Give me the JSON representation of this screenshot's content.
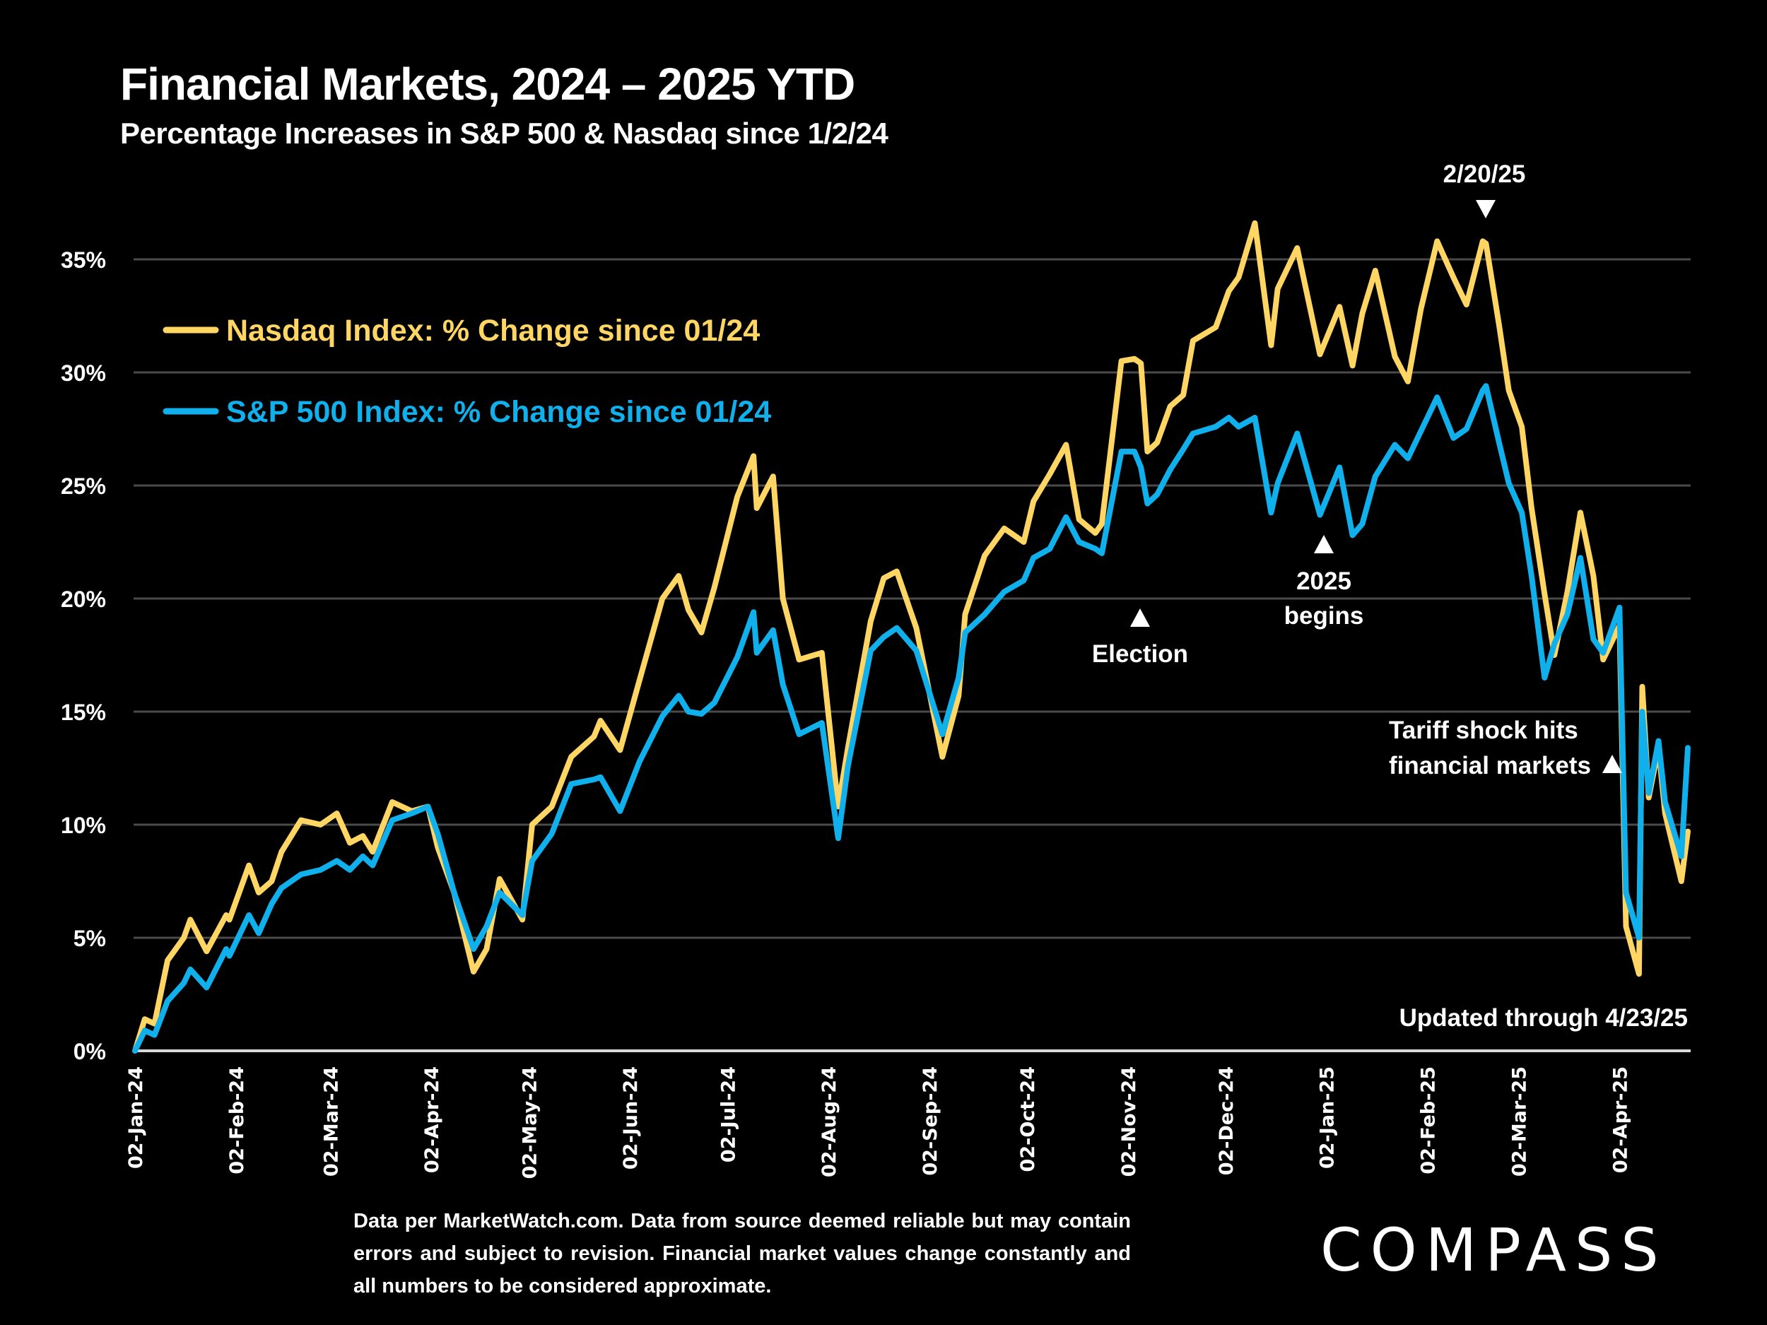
{
  "header": {
    "title": "Financial Markets, 2024 – 2025 YTD",
    "subtitle": "Percentage Increases in S&P 500 & Nasdaq since 1/2/24"
  },
  "footer": {
    "note": "Data per MarketWatch.com. Data from source deemed reliable but may contain errors and subject to revision. Financial market values change constantly and all numbers to be considered approximate.",
    "logo": "COMPASS"
  },
  "colors": {
    "nasdaq": "#FFD563",
    "sp500": "#0FB0EC",
    "grid": "#4a4a4a",
    "axis": "#d9d9d9"
  },
  "chart_data": {
    "type": "line",
    "title": "Financial Markets, 2024 – 2025 YTD",
    "subtitle": "Percentage Increases in S&P 500 & Nasdaq since 1/2/24",
    "xlabel": "",
    "ylabel": "",
    "ylim": [
      0,
      35
    ],
    "yticks": [
      0,
      5,
      10,
      15,
      20,
      25,
      30,
      35
    ],
    "ytick_labels": [
      "0%",
      "5%",
      "10%",
      "15%",
      "20%",
      "25%",
      "30%",
      "35%"
    ],
    "x_range": [
      "2024-01-02",
      "2025-04-23"
    ],
    "xtick_dates": [
      "2024-01-02",
      "2024-02-02",
      "2024-03-02",
      "2024-04-02",
      "2024-05-02",
      "2024-06-02",
      "2024-07-02",
      "2024-08-02",
      "2024-09-02",
      "2024-10-02",
      "2024-11-02",
      "2024-12-02",
      "2025-01-02",
      "2025-02-02",
      "2025-03-02",
      "2025-04-02"
    ],
    "xtick_labels": [
      "02-Jan-24",
      "02-Feb-24",
      "02-Mar-24",
      "02-Apr-24",
      "02-May-24",
      "02-Jun-24",
      "02-Jul-24",
      "02-Aug-24",
      "02-Sep-24",
      "02-Oct-24",
      "02-Nov-24",
      "02-Dec-24",
      "02-Jan-25",
      "02-Feb-25",
      "02-Mar-25",
      "02-Apr-25"
    ],
    "grid": true,
    "legend_position": "top-left",
    "x": [
      "2024-01-02",
      "2024-01-05",
      "2024-01-08",
      "2024-01-12",
      "2024-01-17",
      "2024-01-19",
      "2024-01-24",
      "2024-01-30",
      "2024-01-31",
      "2024-02-06",
      "2024-02-09",
      "2024-02-13",
      "2024-02-16",
      "2024-02-22",
      "2024-02-28",
      "2024-03-04",
      "2024-03-08",
      "2024-03-12",
      "2024-03-15",
      "2024-03-21",
      "2024-03-27",
      "2024-04-01",
      "2024-04-04",
      "2024-04-09",
      "2024-04-15",
      "2024-04-19",
      "2024-04-23",
      "2024-04-30",
      "2024-05-03",
      "2024-05-09",
      "2024-05-15",
      "2024-05-22",
      "2024-05-24",
      "2024-05-30",
      "2024-06-05",
      "2024-06-12",
      "2024-06-17",
      "2024-06-20",
      "2024-06-24",
      "2024-06-28",
      "2024-07-05",
      "2024-07-10",
      "2024-07-11",
      "2024-07-16",
      "2024-07-19",
      "2024-07-24",
      "2024-07-31",
      "2024-08-05",
      "2024-08-08",
      "2024-08-15",
      "2024-08-19",
      "2024-08-23",
      "2024-08-29",
      "2024-09-06",
      "2024-09-11",
      "2024-09-13",
      "2024-09-19",
      "2024-09-25",
      "2024-10-01",
      "2024-10-04",
      "2024-10-09",
      "2024-10-14",
      "2024-10-18",
      "2024-10-23",
      "2024-10-25",
      "2024-10-31",
      "2024-11-04",
      "2024-11-06",
      "2024-11-08",
      "2024-11-11",
      "2024-11-15",
      "2024-11-19",
      "2024-11-22",
      "2024-11-29",
      "2024-12-03",
      "2024-12-06",
      "2024-12-11",
      "2024-12-16",
      "2024-12-18",
      "2024-12-24",
      "2024-12-31",
      "2025-01-06",
      "2025-01-10",
      "2025-01-13",
      "2025-01-17",
      "2025-01-23",
      "2025-01-27",
      "2025-01-31",
      "2025-02-05",
      "2025-02-10",
      "2025-02-14",
      "2025-02-19",
      "2025-02-20",
      "2025-02-24",
      "2025-02-27",
      "2025-03-03",
      "2025-03-06",
      "2025-03-10",
      "2025-03-13",
      "2025-03-17",
      "2025-03-21",
      "2025-03-25",
      "2025-03-28",
      "2025-04-02",
      "2025-04-04",
      "2025-04-08",
      "2025-04-09",
      "2025-04-11",
      "2025-04-14",
      "2025-04-16",
      "2025-04-21",
      "2025-04-23"
    ],
    "series": [
      {
        "name": "Nasdaq Index: % Change since 01/24",
        "values": [
          0.0,
          1.4,
          1.2,
          4.0,
          5.0,
          5.8,
          4.4,
          6.0,
          5.8,
          8.2,
          7.0,
          7.5,
          8.8,
          10.2,
          10.0,
          10.5,
          9.2,
          9.5,
          8.8,
          11.0,
          10.6,
          10.8,
          9.0,
          7.0,
          3.5,
          4.5,
          7.6,
          5.8,
          10.0,
          10.8,
          13.0,
          13.9,
          14.6,
          13.3,
          16.4,
          20.0,
          21.0,
          19.5,
          18.5,
          20.5,
          24.5,
          26.3,
          24.0,
          25.4,
          20.0,
          17.3,
          17.6,
          10.8,
          13.4,
          19.0,
          20.9,
          21.2,
          18.7,
          13.0,
          15.7,
          19.3,
          21.9,
          23.1,
          22.5,
          24.3,
          25.5,
          26.8,
          23.5,
          22.9,
          23.3,
          30.5,
          30.6,
          30.4,
          26.5,
          26.9,
          28.5,
          29.0,
          31.4,
          32.0,
          33.6,
          34.2,
          36.6,
          31.2,
          33.7,
          35.5,
          30.8,
          32.9,
          30.3,
          32.6,
          34.5,
          30.7,
          29.6,
          32.8,
          35.8,
          34.2,
          33.0,
          35.8,
          35.7,
          32.1,
          29.2,
          27.6,
          24.0,
          20.2,
          17.5,
          20.3,
          23.8,
          21.0,
          17.3,
          18.8,
          5.5,
          3.4,
          16.1,
          11.2,
          13.4,
          10.5,
          7.5,
          9.7
        ]
      },
      {
        "name": "S&P 500 Index: % Change since 01/24",
        "values": [
          0.0,
          0.9,
          0.7,
          2.2,
          3.0,
          3.6,
          2.8,
          4.5,
          4.2,
          6.0,
          5.2,
          6.5,
          7.2,
          7.8,
          8.0,
          8.4,
          8.0,
          8.6,
          8.2,
          10.2,
          10.5,
          10.8,
          9.6,
          7.0,
          4.5,
          5.5,
          7.0,
          6.0,
          8.4,
          9.6,
          11.8,
          12.0,
          12.1,
          10.6,
          12.8,
          14.8,
          15.7,
          15.0,
          14.9,
          15.4,
          17.4,
          19.4,
          17.6,
          18.6,
          16.2,
          14.0,
          14.5,
          9.4,
          12.6,
          17.7,
          18.3,
          18.7,
          17.7,
          14.0,
          16.5,
          18.5,
          19.3,
          20.3,
          20.8,
          21.8,
          22.2,
          23.6,
          22.5,
          22.2,
          22.0,
          26.5,
          26.5,
          25.8,
          24.2,
          24.6,
          25.7,
          26.6,
          27.3,
          27.6,
          28.0,
          27.6,
          28.0,
          23.8,
          25.1,
          27.3,
          23.7,
          25.8,
          22.8,
          23.3,
          25.4,
          26.8,
          26.2,
          27.4,
          28.9,
          27.1,
          27.5,
          29.2,
          29.4,
          26.9,
          25.1,
          23.8,
          21.0,
          16.5,
          18.0,
          19.3,
          21.8,
          18.2,
          17.6,
          19.6,
          7.0,
          5.0,
          15.0,
          11.4,
          13.7,
          11.0,
          8.6,
          13.4
        ]
      }
    ],
    "annotations": [
      {
        "text": "2/20/25",
        "date": "2025-02-20",
        "marker": "down-triangle"
      },
      {
        "text": "Election",
        "date": "2024-11-05",
        "marker": "up-triangle"
      },
      {
        "text_lines": [
          "2025",
          "begins"
        ],
        "date": "2025-01-02",
        "marker": "up-triangle"
      },
      {
        "text_lines": [
          "Tariff shock hits",
          "financial markets"
        ],
        "date": "2025-04-03",
        "marker": "up-triangle"
      },
      {
        "text": "Updated through 4/23/25"
      }
    ]
  }
}
